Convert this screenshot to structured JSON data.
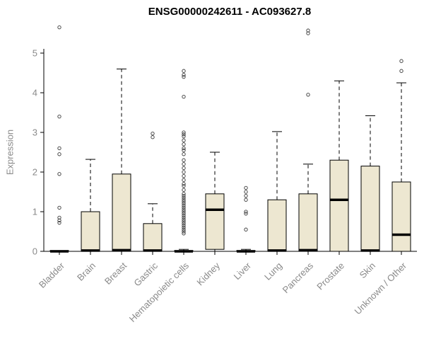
{
  "chart_data": {
    "type": "boxplot",
    "title": "ENSG00000242611 - AC093627.8",
    "ylabel": "Expression",
    "xlabel": "",
    "ylim": [
      0,
      5.8
    ],
    "yticks": [
      0,
      1,
      2,
      3,
      4,
      5
    ],
    "grid": false,
    "legend": "none",
    "box_fill_color": "#EDE7D1",
    "box_stroke_color": "#000000",
    "axis_text_color": "#8a8a8a",
    "categories": [
      "Bladder",
      "Brain",
      "Breast",
      "Gastric",
      "Hematopoietic cells",
      "Kidney",
      "Liver",
      "Lung",
      "Pancreas",
      "Prostate",
      "Skin",
      "Unknown / Other"
    ],
    "boxes": [
      {
        "category": "Bladder",
        "q1": 0,
        "median": 0,
        "q3": 0.02,
        "whisker_low": 0,
        "whisker_high": 0.02,
        "outliers": [
          0.72,
          0.78,
          0.85,
          1.1,
          1.95,
          2.45,
          2.6,
          3.4,
          5.65
        ]
      },
      {
        "category": "Brain",
        "q1": 0,
        "median": 0.02,
        "q3": 1.0,
        "whisker_low": 0,
        "whisker_high": 2.32,
        "outliers": []
      },
      {
        "category": "Breast",
        "q1": 0,
        "median": 0.03,
        "q3": 1.95,
        "whisker_low": 0,
        "whisker_high": 4.6,
        "outliers": []
      },
      {
        "category": "Gastric",
        "q1": 0,
        "median": 0.02,
        "q3": 0.7,
        "whisker_low": 0,
        "whisker_high": 1.2,
        "outliers": [
          2.88,
          2.97
        ]
      },
      {
        "category": "Hematopoietic cells",
        "q1": 0,
        "median": 0,
        "q3": 0.02,
        "whisker_low": 0,
        "whisker_high": 0.05,
        "outliers": [
          0.45,
          0.5,
          0.55,
          0.6,
          0.65,
          0.7,
          0.75,
          0.8,
          0.85,
          0.9,
          0.95,
          1.0,
          1.05,
          1.1,
          1.15,
          1.2,
          1.25,
          1.3,
          1.35,
          1.4,
          1.45,
          1.55,
          1.65,
          1.7,
          1.8,
          1.9,
          2.0,
          2.1,
          2.2,
          2.3,
          2.45,
          2.55,
          2.6,
          2.7,
          2.8,
          2.9,
          2.95,
          3.0,
          3.9,
          4.4,
          4.45,
          4.55
        ]
      },
      {
        "category": "Kidney",
        "q1": 0.05,
        "median": 1.05,
        "q3": 1.45,
        "whisker_low": 0,
        "whisker_high": 2.5,
        "outliers": []
      },
      {
        "category": "Liver",
        "q1": 0,
        "median": 0,
        "q3": 0.02,
        "whisker_low": 0,
        "whisker_high": 0.05,
        "outliers": [
          0.55,
          0.95,
          1.0,
          1.3,
          1.4,
          1.5,
          1.6
        ]
      },
      {
        "category": "Lung",
        "q1": 0,
        "median": 0.02,
        "q3": 1.3,
        "whisker_low": 0,
        "whisker_high": 3.02,
        "outliers": []
      },
      {
        "category": "Pancreas",
        "q1": 0,
        "median": 0.03,
        "q3": 1.45,
        "whisker_low": 0,
        "whisker_high": 2.2,
        "outliers": [
          3.95,
          5.5,
          5.57
        ]
      },
      {
        "category": "Prostate",
        "q1": 0,
        "median": 1.3,
        "q3": 2.3,
        "whisker_low": 0,
        "whisker_high": 4.3,
        "outliers": []
      },
      {
        "category": "Skin",
        "q1": 0,
        "median": 0.02,
        "q3": 2.15,
        "whisker_low": 0,
        "whisker_high": 3.42,
        "outliers": []
      },
      {
        "category": "Unknown / Other",
        "q1": 0,
        "median": 0.42,
        "q3": 1.75,
        "whisker_low": 0,
        "whisker_high": 4.25,
        "outliers": [
          4.55,
          4.8
        ]
      }
    ]
  }
}
